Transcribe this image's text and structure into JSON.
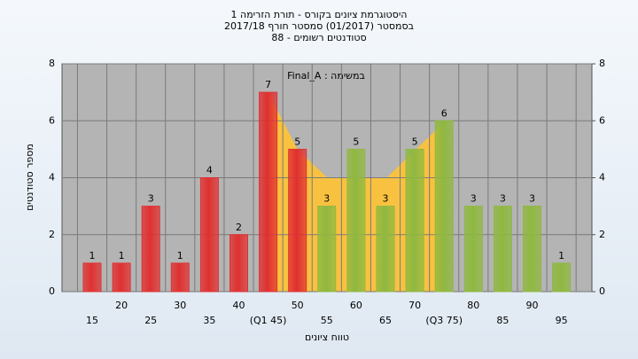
{
  "chart_data": {
    "type": "bar",
    "title": [
      "היסטוגרמת ציונים בקורס - תורת הזרימה 1",
      "בסמסטר (01/2017) סמסטר חורף 2017/18",
      "סטודנטים רשומים - 88"
    ],
    "annotation": "במשימה : Final_A",
    "x_label": "טווח ציונים",
    "y_label": "מספר סטודנטים",
    "categories": [
      "15",
      "20",
      "25",
      "30",
      "35",
      "40",
      "(Q1 45)",
      "50",
      "55",
      "60",
      "65",
      "70",
      "(Q3 75)",
      "80",
      "85",
      "90",
      "95"
    ],
    "values": [
      1,
      1,
      3,
      1,
      4,
      2,
      7,
      5,
      3,
      5,
      3,
      5,
      6,
      3,
      3,
      3,
      1
    ],
    "colors": [
      "#e03030",
      "#e03030",
      "#e03030",
      "#e03030",
      "#e03030",
      "#e03030",
      "#e03030",
      "#e03030",
      "#8fb840",
      "#8fb840",
      "#8fb840",
      "#8fb840",
      "#8fb840",
      "#8fb840",
      "#8fb840",
      "#8fb840",
      "#8fb840"
    ],
    "ylim": [
      0,
      8
    ],
    "yticks": [
      0,
      2,
      4,
      6,
      8
    ],
    "y2lim": [
      0,
      8
    ],
    "y2ticks": [
      0,
      2,
      4,
      6,
      8
    ],
    "grid": true
  }
}
